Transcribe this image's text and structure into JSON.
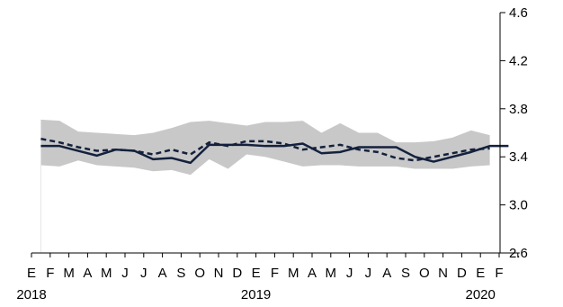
{
  "chart_data": {
    "type": "line",
    "x_tick_labels": [
      "E",
      "F",
      "M",
      "A",
      "M",
      "J",
      "J",
      "A",
      "S",
      "O",
      "N",
      "D",
      "E",
      "F",
      "M",
      "A",
      "M",
      "J",
      "J",
      "A",
      "S",
      "O",
      "N",
      "D",
      "E",
      "F"
    ],
    "year_labels": [
      {
        "label": "2018",
        "tick_index": 0
      },
      {
        "label": "2019",
        "tick_index": 12
      },
      {
        "label": "2020",
        "tick_index": 24
      }
    ],
    "y_ticks": [
      2.6,
      3.0,
      3.4,
      3.8,
      4.2,
      4.6
    ],
    "y_tick_labels": [
      "2.6",
      "3.0",
      "3.4",
      "3.8",
      "4.2",
      "4.6"
    ],
    "ylim": [
      2.6,
      4.6
    ],
    "y_axis_side": "right",
    "grid": false,
    "band": {
      "color": "#c8c8c8",
      "upper": [
        3.71,
        3.7,
        3.61,
        3.6,
        3.59,
        3.58,
        3.6,
        3.64,
        3.69,
        3.7,
        3.68,
        3.66,
        3.69,
        3.69,
        3.7,
        3.6,
        3.68,
        3.6,
        3.6,
        3.52,
        3.52,
        3.53,
        3.56,
        3.62,
        3.58
      ],
      "lower": [
        3.33,
        3.32,
        3.37,
        3.33,
        3.32,
        3.31,
        3.28,
        3.29,
        3.25,
        3.38,
        3.3,
        3.42,
        3.4,
        3.36,
        3.32,
        3.33,
        3.33,
        3.32,
        3.32,
        3.32,
        3.3,
        3.3,
        3.3,
        3.32,
        3.33
      ]
    },
    "series": [
      {
        "style": "solid",
        "color": "#14213d",
        "values": [
          3.49,
          3.49,
          3.45,
          3.41,
          3.46,
          3.45,
          3.38,
          3.39,
          3.35,
          3.5,
          3.5,
          3.5,
          3.49,
          3.49,
          3.51,
          3.43,
          3.44,
          3.48,
          3.48,
          3.48,
          3.4,
          3.36,
          3.4,
          3.44,
          3.49,
          3.49
        ]
      },
      {
        "style": "dashed",
        "color": "#14213d",
        "values": [
          3.55,
          3.52,
          3.48,
          3.45,
          3.46,
          3.45,
          3.42,
          3.46,
          3.42,
          3.52,
          3.49,
          3.53,
          3.53,
          3.51,
          3.46,
          3.48,
          3.5,
          3.46,
          3.44,
          3.39,
          3.37,
          3.4,
          3.43,
          3.46,
          3.47
        ]
      }
    ]
  }
}
